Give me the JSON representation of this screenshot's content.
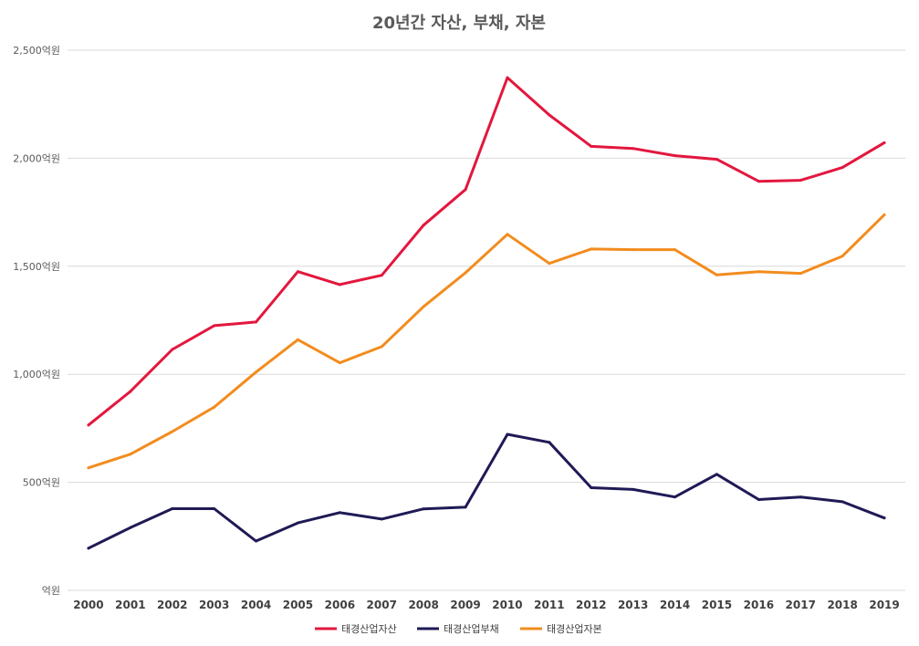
{
  "chart_data": {
    "type": "line",
    "title": "20년간 자산, 부채, 자본",
    "xlabel": "",
    "ylabel": "",
    "categories": [
      "2000",
      "2001",
      "2002",
      "2003",
      "2004",
      "2005",
      "2006",
      "2007",
      "2008",
      "2009",
      "2010",
      "2011",
      "2012",
      "2013",
      "2014",
      "2015",
      "2016",
      "2017",
      "2018",
      "2019"
    ],
    "ylim": [
      0,
      2500
    ],
    "yticks": [
      0,
      500,
      1000,
      1500,
      2000,
      2500
    ],
    "ytick_labels": [
      "억원",
      "500억원",
      "1,000억원",
      "1,500억원",
      "2,000억원",
      "2,500억원"
    ],
    "grid": true,
    "legend_position": "bottom",
    "series": [
      {
        "name": "태경산업자산",
        "color": "#e3173e",
        "values": [
          765,
          920,
          1115,
          1225,
          1242,
          1475,
          1415,
          1458,
          1690,
          1855,
          2373,
          2200,
          2055,
          2045,
          2012,
          1995,
          1893,
          1898,
          1957,
          2072
        ]
      },
      {
        "name": "태경산업부채",
        "color": "#1f1a55",
        "values": [
          195,
          290,
          378,
          378,
          228,
          312,
          360,
          330,
          377,
          385,
          722,
          685,
          475,
          467,
          432,
          537,
          420,
          432,
          410,
          335
        ]
      },
      {
        "name": "태경산업자본",
        "color": "#f28c1e",
        "values": [
          567,
          630,
          735,
          848,
          1010,
          1160,
          1053,
          1128,
          1313,
          1470,
          1648,
          1513,
          1580,
          1577,
          1577,
          1460,
          1475,
          1467,
          1547,
          1738
        ]
      }
    ]
  }
}
